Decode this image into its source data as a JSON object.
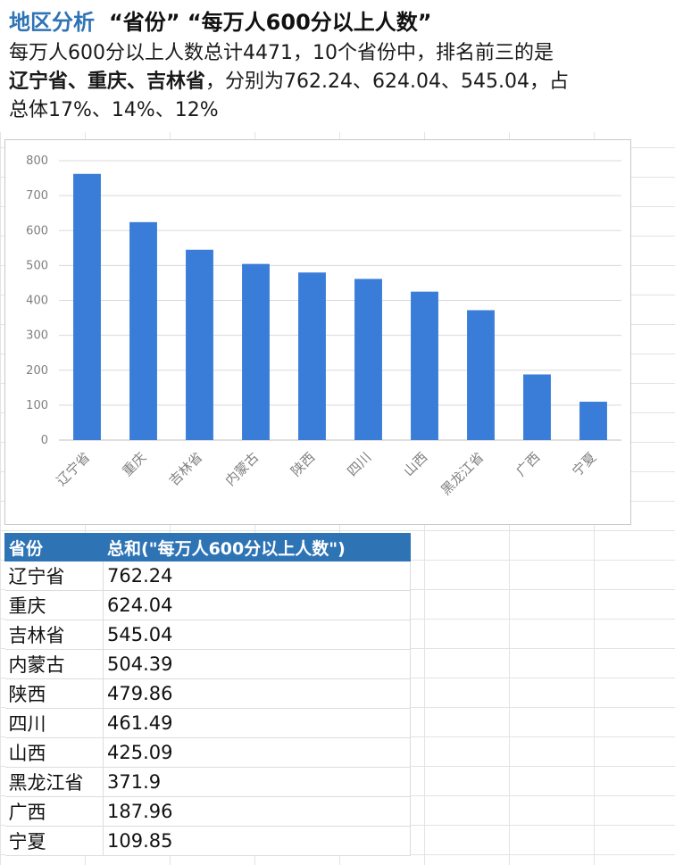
{
  "header": {
    "title_prefix": "地区分析",
    "title_rest": "“省份” “每万人600分以上人数”",
    "summary_line1": "每万人600分以上人数总计4471，10个省份中，排名前三的是",
    "summary_top3": "辽宁省、重庆、吉林省",
    "summary_line2_rest": "，分别为762.24、624.04、545.04，占",
    "summary_line3": "总体17%、14%、12%"
  },
  "chart_data": {
    "type": "bar",
    "categories": [
      "辽宁省",
      "重庆",
      "吉林省",
      "内蒙古",
      "陕西",
      "四川",
      "山西",
      "黑龙江省",
      "广西",
      "宁夏"
    ],
    "values": [
      762.24,
      624.04,
      545.04,
      504.39,
      479.86,
      461.49,
      425.09,
      371.9,
      187.96,
      109.85
    ],
    "ylim": [
      0,
      800
    ],
    "yticks": [
      0,
      100,
      200,
      300,
      400,
      500,
      600,
      700,
      800
    ],
    "grid": true,
    "bar_color": "#3a7dd8"
  },
  "table": {
    "headers": [
      "省份",
      "总和(\"每万人600分以上人数\")"
    ],
    "rows": [
      [
        "辽宁省",
        "762.24"
      ],
      [
        "重庆",
        "624.04"
      ],
      [
        "吉林省",
        "545.04"
      ],
      [
        "内蒙古",
        "504.39"
      ],
      [
        "陕西",
        "479.86"
      ],
      [
        "四川",
        "461.49"
      ],
      [
        "山西",
        "425.09"
      ],
      [
        "黑龙江省",
        "371.9"
      ],
      [
        "广西",
        "187.96"
      ],
      [
        "宁夏",
        "109.85"
      ]
    ]
  }
}
